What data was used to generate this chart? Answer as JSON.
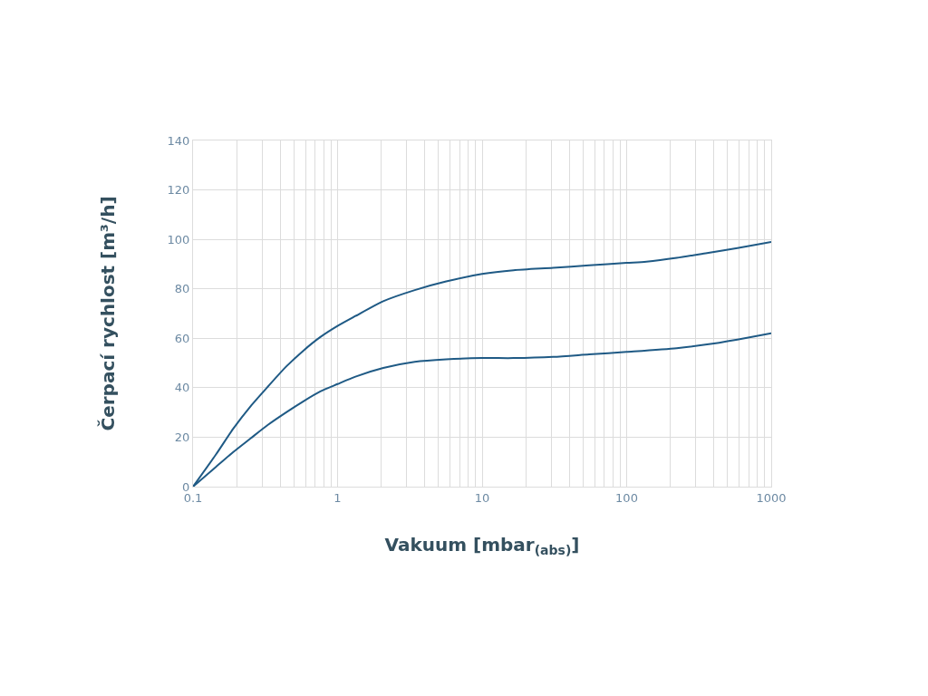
{
  "chart_data": {
    "type": "line",
    "xlabel": "Vakuum [mbar$_{(abs)}$]",
    "ylabel": "Čerpací rychlost [m³/h]",
    "log": "x",
    "xlim": [
      0.1,
      1000
    ],
    "xticks": [
      0.1,
      1,
      10,
      100,
      1000
    ],
    "ylim": [
      0,
      140
    ],
    "yticks": [
      0,
      20,
      40,
      60,
      80,
      100,
      120,
      140
    ],
    "grid": true,
    "marker": "none",
    "line_style": "solid",
    "series": [
      {
        "color": "#1f5a85",
        "x": [
          0.1,
          0.144,
          0.19,
          0.25,
          0.33,
          0.44,
          0.58,
          0.76,
          1,
          1.33,
          2.07,
          3.42,
          5.64,
          10,
          16.5,
          31,
          55,
          100,
          137,
          222,
          360,
          583,
          1000
        ],
        "values": [
          0,
          13,
          23.5,
          32.5,
          40.5,
          48.5,
          55,
          60.5,
          65,
          69,
          75,
          79.5,
          83,
          86,
          87.5,
          88.5,
          89.5,
          90.5,
          91,
          92.5,
          94.5,
          96.5,
          99
        ]
      },
      {
        "color": "#1f5a85",
        "x": [
          0.1,
          0.144,
          0.19,
          0.25,
          0.33,
          0.44,
          0.58,
          0.76,
          1,
          1.33,
          2.07,
          3.42,
          5.64,
          10,
          16.5,
          31,
          55,
          100,
          222,
          360,
          583,
          1000
        ],
        "values": [
          0,
          8,
          14,
          19.5,
          25,
          30,
          34.5,
          38.5,
          41.5,
          44.5,
          48,
          50.5,
          51.5,
          52,
          52,
          52.5,
          53.5,
          54.5,
          56,
          57.5,
          59.5,
          62
        ]
      }
    ]
  }
}
